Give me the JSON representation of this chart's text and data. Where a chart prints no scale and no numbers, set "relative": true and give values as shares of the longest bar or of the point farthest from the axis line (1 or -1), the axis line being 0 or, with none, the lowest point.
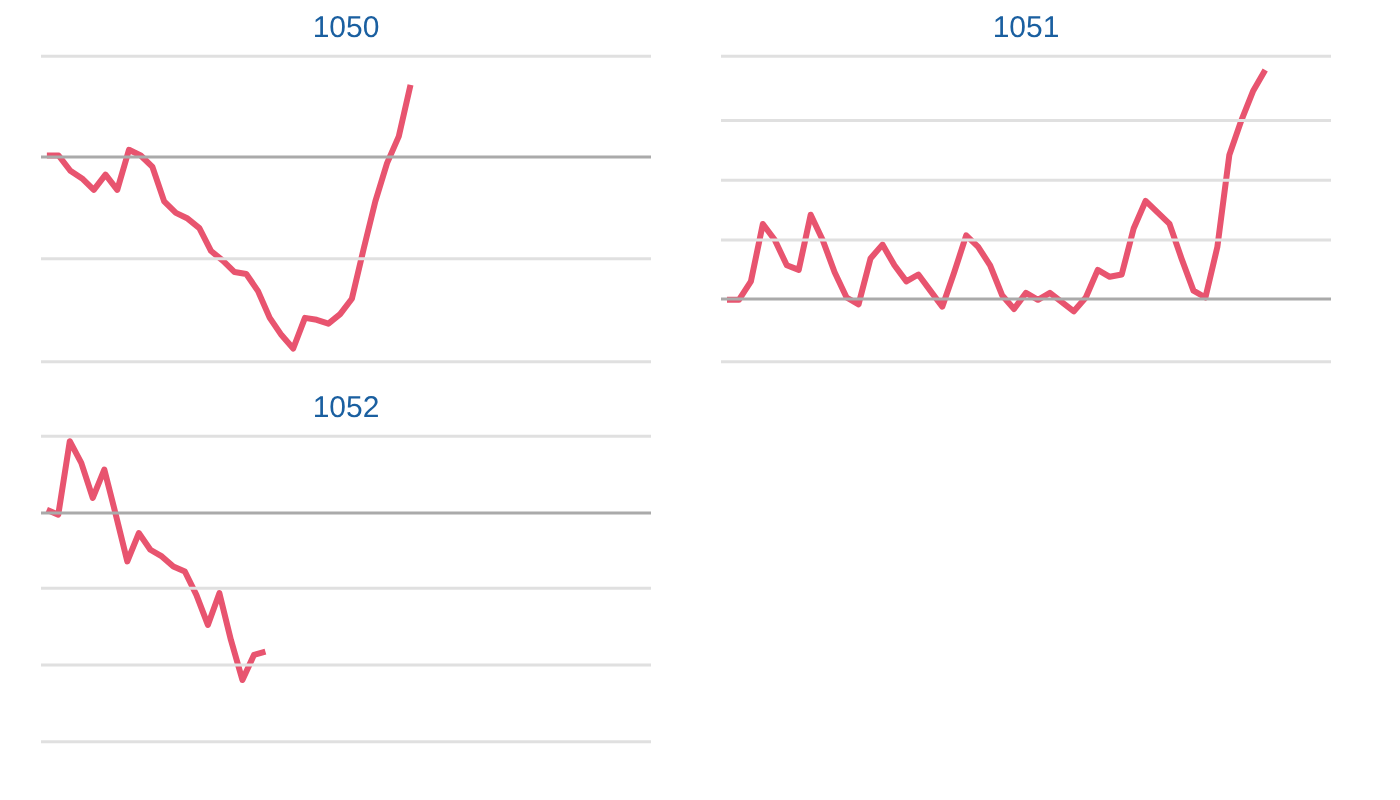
{
  "chart_data": [
    {
      "type": "line",
      "title": "1050",
      "relative": true,
      "ref_lines": [
        {
          "axis": "y",
          "value": 0.53,
          "color": "#e0e0e0"
        },
        {
          "axis": "y",
          "value": -0.53,
          "color": "#e0e0e0"
        },
        {
          "axis": "y",
          "value": -1.07,
          "color": "#e0e0e0"
        }
      ],
      "categories": [
        null,
        null,
        null,
        null,
        null,
        null,
        null,
        null,
        null,
        null,
        null,
        null,
        null,
        null,
        null,
        null,
        null,
        null,
        null,
        null,
        null,
        null,
        null,
        null,
        null,
        null,
        null,
        null,
        null,
        null,
        null,
        null,
        null,
        null,
        null,
        null,
        null,
        null,
        null,
        null,
        null,
        null,
        null,
        null,
        null,
        null,
        null,
        null,
        null,
        null,
        null,
        null
      ],
      "series": [
        {
          "color": "#e8546f",
          "values": [
            0.01,
            0.01,
            -0.07,
            -0.11,
            -0.17,
            -0.09,
            -0.17,
            0.04,
            0.01,
            -0.05,
            -0.23,
            -0.29,
            -0.32,
            -0.37,
            -0.49,
            -0.54,
            -0.6,
            -0.61,
            -0.7,
            -0.84,
            -0.93,
            -1,
            -0.84,
            -0.85,
            -0.87,
            -0.82,
            -0.74,
            -0.48,
            -0.23,
            -0.03,
            0.11,
            0.38,
            null,
            null,
            null,
            null,
            null,
            null,
            null,
            null,
            null,
            null,
            null,
            null,
            null,
            null,
            null,
            null,
            null,
            null,
            null,
            null
          ]
        }
      ]
    },
    {
      "type": "line",
      "title": "1051",
      "relative": true,
      "ref_lines": [
        {
          "axis": "y",
          "value": 1.06,
          "color": "#e0e0e0"
        },
        {
          "axis": "y",
          "value": 0.78,
          "color": "#e0e0e0"
        },
        {
          "axis": "y",
          "value": 0.52,
          "color": "#e0e0e0"
        },
        {
          "axis": "y",
          "value": 0.26,
          "color": "#e0e0e0"
        },
        {
          "axis": "y",
          "value": -0.27,
          "color": "#e0e0e0"
        }
      ],
      "categories": [
        null,
        null,
        null,
        null,
        null,
        null,
        null,
        null,
        null,
        null,
        null,
        null,
        null,
        null,
        null,
        null,
        null,
        null,
        null,
        null,
        null,
        null,
        null,
        null,
        null,
        null,
        null,
        null,
        null,
        null,
        null,
        null,
        null,
        null,
        null,
        null,
        null,
        null,
        null,
        null,
        null,
        null,
        null,
        null,
        null,
        null,
        null,
        null,
        null,
        null,
        null
      ],
      "series": [
        {
          "color": "#e8546f",
          "values": [
            0,
            0,
            0.08,
            0.33,
            0.26,
            0.15,
            0.13,
            0.37,
            0.26,
            0.12,
            0.01,
            -0.02,
            0.18,
            0.24,
            0.15,
            0.08,
            0.11,
            0.04,
            -0.03,
            0.12,
            0.28,
            0.23,
            0.15,
            0.02,
            -0.04,
            0.03,
            0,
            0.03,
            -0.01,
            -0.05,
            0.01,
            0.13,
            0.1,
            0.11,
            0.31,
            0.43,
            0.38,
            0.33,
            0.18,
            0.04,
            0.01,
            0.23,
            0.63,
            0.78,
            0.91,
            1,
            null,
            null,
            null,
            null,
            null
          ]
        }
      ]
    },
    {
      "type": "line",
      "title": "1052",
      "relative": true,
      "ref_lines": [
        {
          "axis": "y",
          "value": 0.46,
          "color": "#e0e0e0"
        },
        {
          "axis": "y",
          "value": -0.45,
          "color": "#e0e0e0"
        },
        {
          "axis": "y",
          "value": -0.91,
          "color": "#e0e0e0"
        },
        {
          "axis": "y",
          "value": -1.37,
          "color": "#e0e0e0"
        }
      ],
      "categories": [
        null,
        null,
        null,
        null,
        null,
        null,
        null,
        null,
        null,
        null,
        null,
        null,
        null,
        null,
        null,
        null,
        null,
        null,
        null,
        null,
        null,
        null,
        null,
        null,
        null,
        null,
        null,
        null,
        null,
        null,
        null,
        null,
        null,
        null,
        null,
        null,
        null,
        null,
        null,
        null,
        null,
        null,
        null,
        null,
        null,
        null,
        null,
        null,
        null,
        null,
        null,
        null,
        null
      ],
      "series": [
        {
          "color": "#e8546f",
          "values": [
            0.02,
            -0.01,
            0.43,
            0.3,
            0.09,
            0.26,
            -0.01,
            -0.29,
            -0.12,
            -0.22,
            -0.26,
            -0.32,
            -0.35,
            -0.49,
            -0.67,
            -0.48,
            -0.76,
            -1,
            -0.85,
            -0.83,
            null,
            null,
            null,
            null,
            null,
            null,
            null,
            null,
            null,
            null,
            null,
            null,
            null,
            null,
            null,
            null,
            null,
            null,
            null,
            null,
            null,
            null,
            null,
            null,
            null,
            null,
            null,
            null,
            null,
            null,
            null,
            null,
            null
          ]
        }
      ]
    }
  ]
}
